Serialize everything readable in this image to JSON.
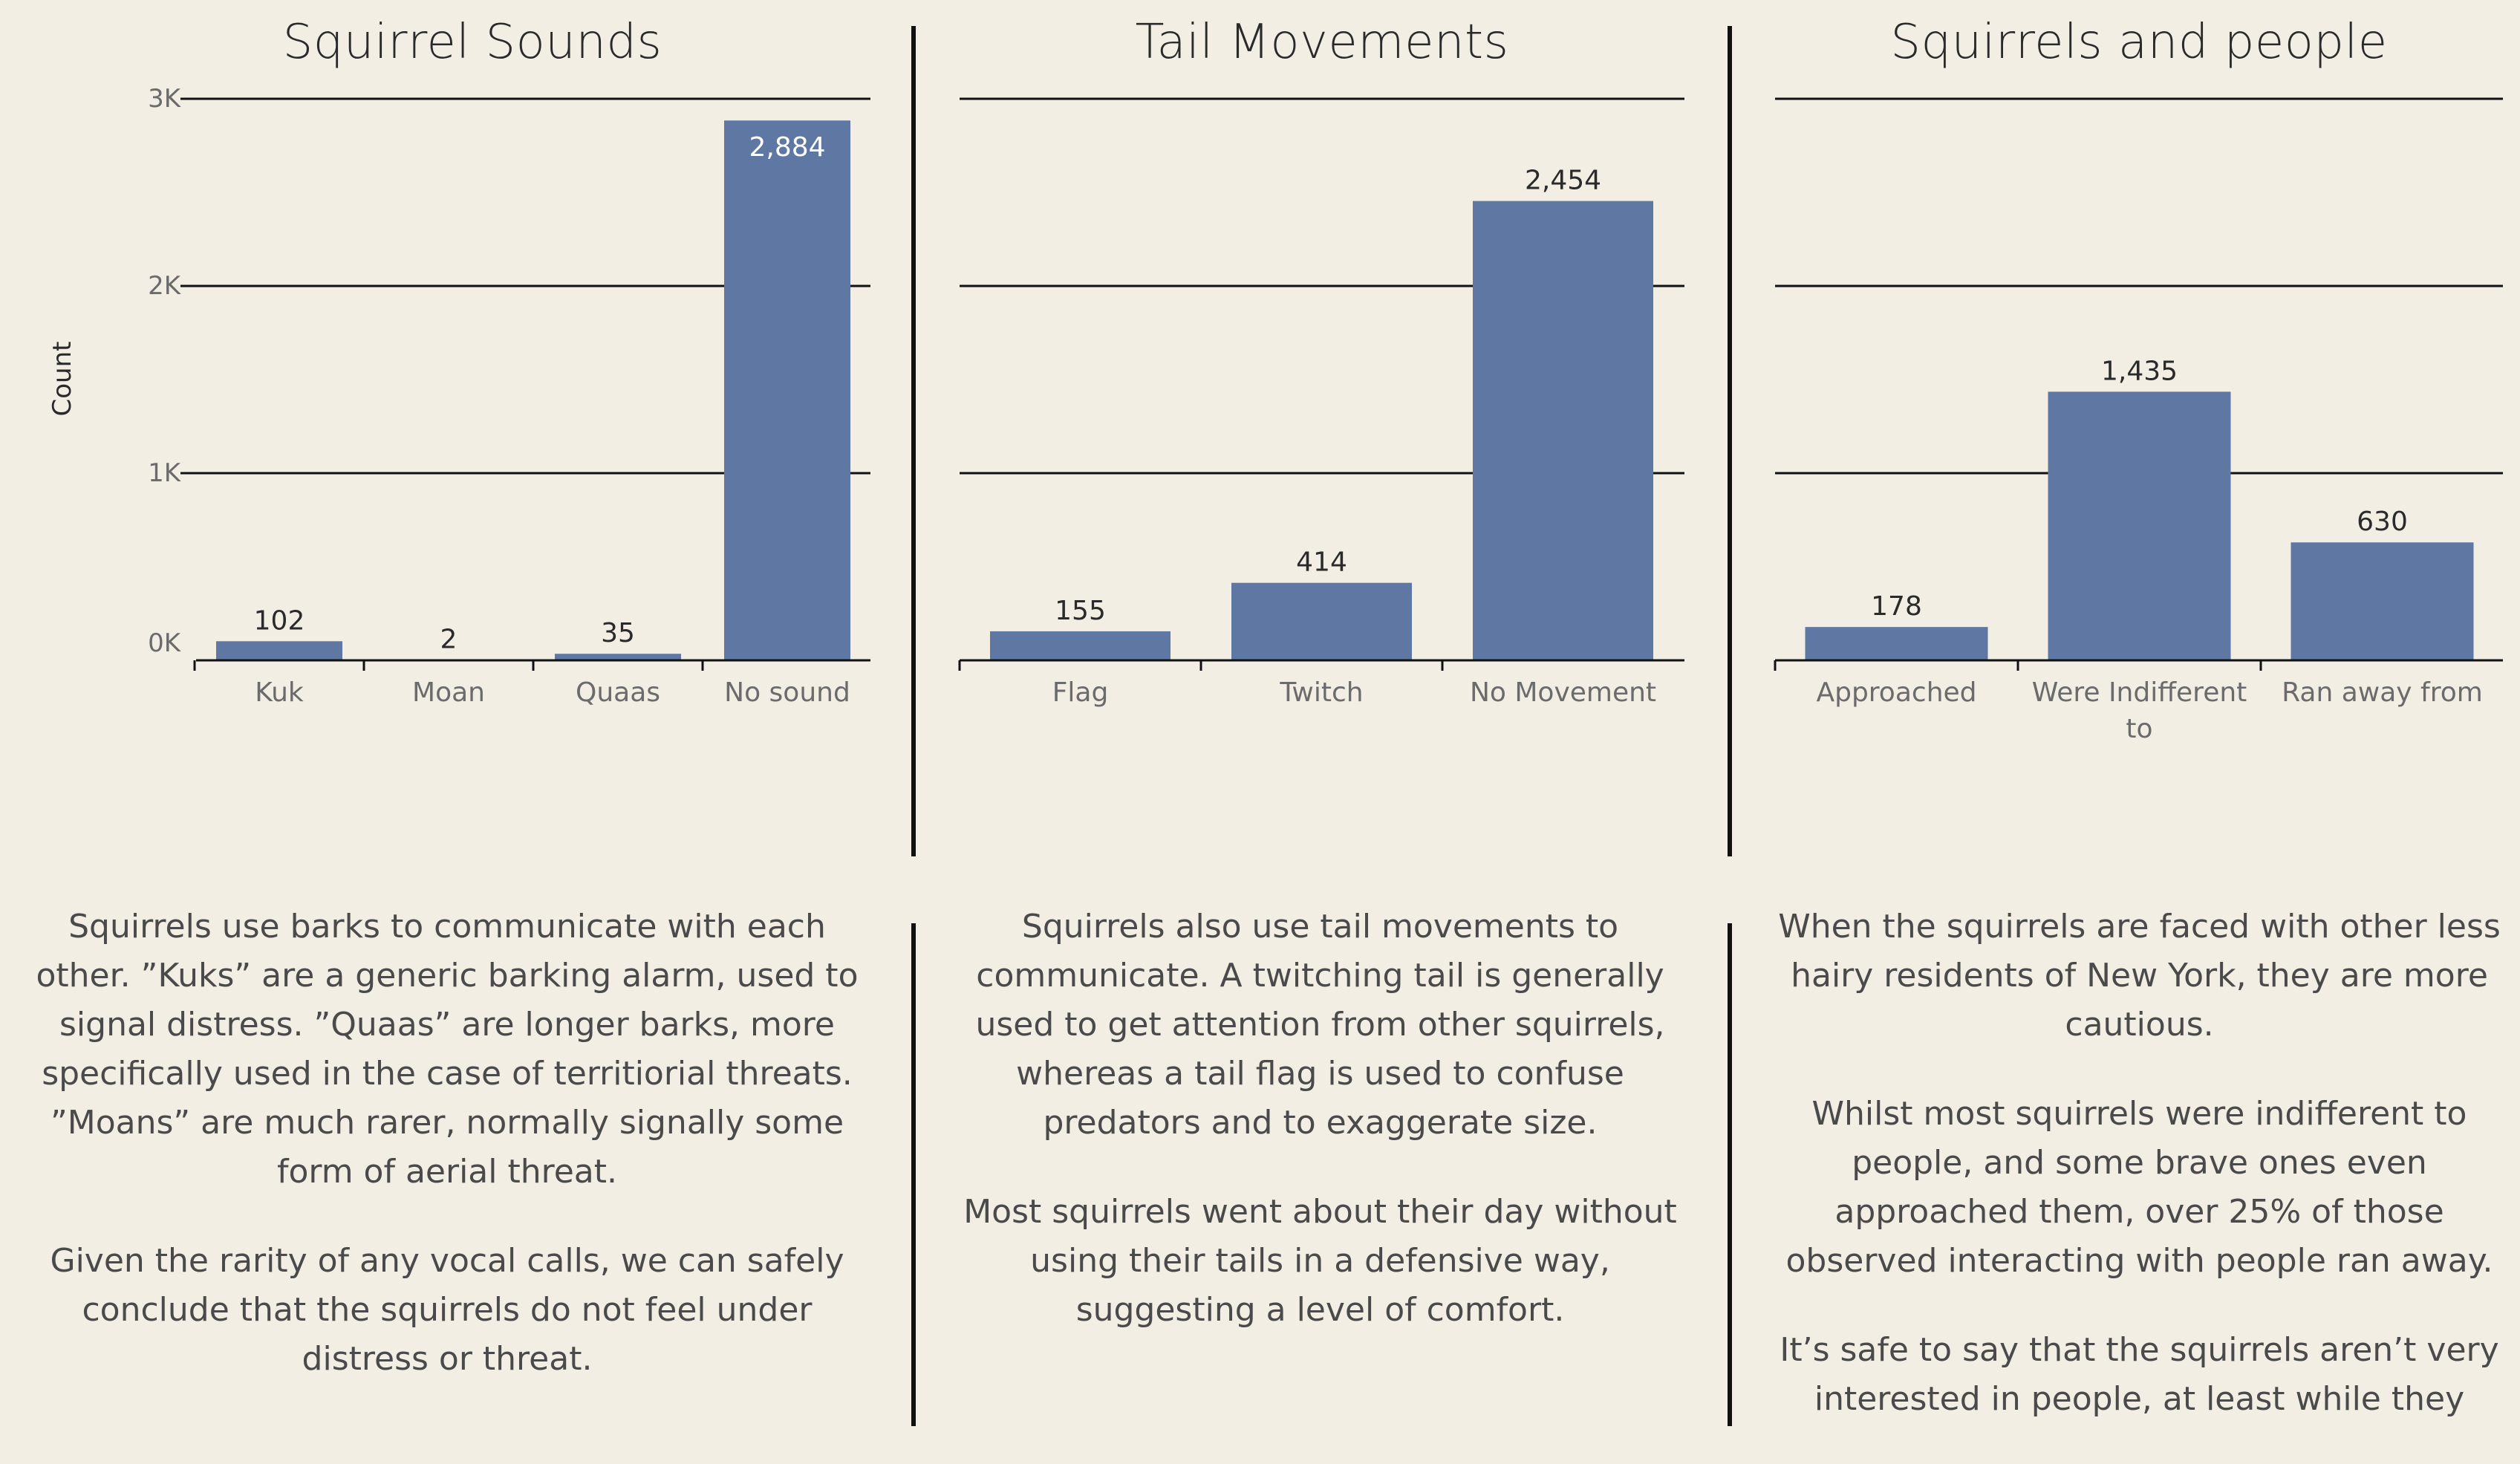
{
  "colors": {
    "background": "#f2eee4",
    "bar": "#5f78a3",
    "gridline": "#111111",
    "text_primary": "#2a2a2a",
    "text_secondary": "#4a4a4a",
    "tick_text": "#6b6b6b"
  },
  "chart_data": [
    {
      "type": "bar",
      "title": "Squirrel Sounds",
      "ylabel": "Count",
      "ylim": [
        0,
        3000
      ],
      "yticks": [
        {
          "value": 0,
          "label": "0K"
        },
        {
          "value": 1000,
          "label": "1K"
        },
        {
          "value": 2000,
          "label": "2K"
        },
        {
          "value": 3000,
          "label": "3K"
        }
      ],
      "categories": [
        "Kuk",
        "Moan",
        "Quaas",
        "No sound"
      ],
      "values": [
        102,
        2,
        35,
        2884
      ],
      "data_labels": [
        "102",
        "2",
        "35",
        "2,884"
      ],
      "grid": true
    },
    {
      "type": "bar",
      "title": "Tail Movements",
      "ylabel": "",
      "ylim": [
        0,
        3000
      ],
      "categories": [
        "Flag",
        "Twitch",
        "No Movement"
      ],
      "values": [
        155,
        414,
        2454
      ],
      "data_labels": [
        "155",
        "414",
        "2,454"
      ],
      "grid": true
    },
    {
      "type": "bar",
      "title": "Squirrels and people",
      "ylabel": "",
      "ylim": [
        0,
        3000
      ],
      "categories": [
        "Approached",
        "Were Indifferent to",
        "Ran away from"
      ],
      "values": [
        178,
        1435,
        630
      ],
      "data_labels": [
        "178",
        "1,435",
        "630"
      ],
      "grid": true
    }
  ],
  "texts": {
    "sounds": [
      "Squirrels use barks to communicate with each other. ”Kuks” are a generic barking alarm, used to signal distress. ”Quaas” are longer barks, more specifically used in the case of territiorial threats. ”Moans” are much rarer, normally signally some form of aerial threat.",
      "Given the rarity of any vocal calls, we can safely conclude that the squirrels do not feel under distress or threat."
    ],
    "tail": [
      "Squirrels also use tail movements to communicate. A twitching tail is generally used to get attention from other squirrels, whereas a tail flag is used to confuse predators and to exaggerate size.",
      "Most squirrels went about their day without using their tails in a defensive way, suggesting a level of comfort."
    ],
    "people": [
      "When the squirrels are faced with other less hairy residents of New York, they are more cautious.",
      "Whilst most squirrels were indifferent to people, and some brave ones even approached them, over 25% of those observed interacting with people ran away.",
      "It’s safe to say that the squirrels aren’t very interested in people, at least while they"
    ]
  }
}
